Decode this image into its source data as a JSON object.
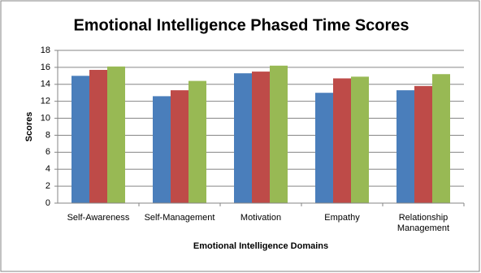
{
  "chart_data": {
    "type": "bar",
    "title": "Emotional Intelligence Phased Time Scores",
    "x_label": "Emotional Intelligence Domains",
    "y_label": "Scores",
    "categories": [
      "Self-Awareness",
      "Self-Management",
      "Motivation",
      "Empathy",
      "Relationship Management"
    ],
    "series": [
      {
        "color": "#4a7ebb",
        "values": [
          15,
          12.6,
          15.3,
          13,
          13.3
        ]
      },
      {
        "color": "#be4b48",
        "values": [
          15.7,
          13.3,
          15.5,
          14.7,
          13.8
        ]
      },
      {
        "color": "#98b954",
        "values": [
          16.1,
          14.4,
          16.2,
          14.9,
          15.2
        ]
      }
    ],
    "ylim": [
      0,
      18
    ],
    "yticks": [
      0,
      2,
      4,
      6,
      8,
      10,
      12,
      14,
      16,
      18
    ],
    "grid": true
  }
}
